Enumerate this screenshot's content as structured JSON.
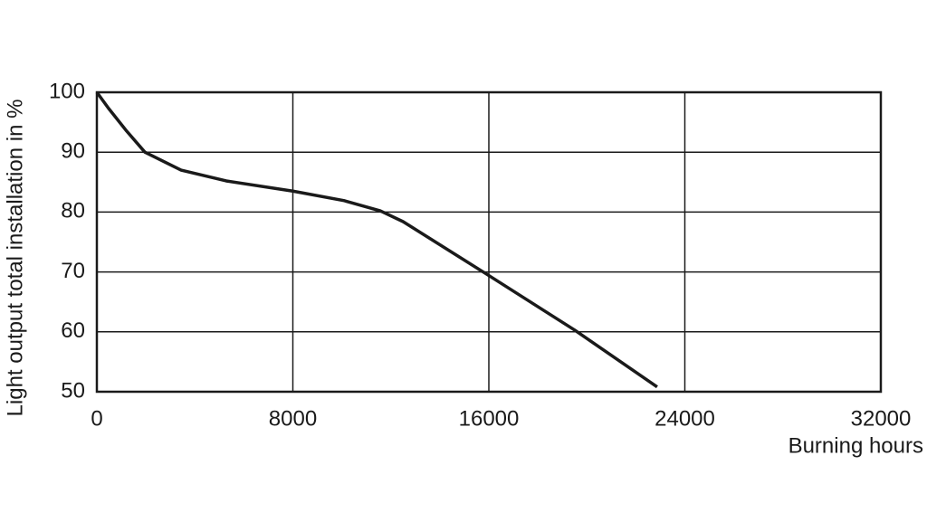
{
  "chart_data": {
    "type": "line",
    "x_label": "Burning hours",
    "y_label": "Light output total installation in %",
    "x": [
      0,
      480,
      1220,
      1960,
      3440,
      5280,
      8000,
      10100,
      11570,
      12500,
      16000,
      19500,
      22870
    ],
    "series": [
      {
        "name": "Light output",
        "color": "#1a1a1a",
        "values": [
          100,
          97.3,
          93.5,
          90,
          87,
          85.2,
          83.5,
          81.9,
          80.2,
          78.4,
          69.4,
          60.3,
          50.8
        ]
      }
    ],
    "xlim": [
      0,
      32000
    ],
    "xticks": [
      0,
      8000,
      16000,
      24000,
      32000
    ],
    "ylim": [
      50,
      100
    ],
    "yticks": [
      50,
      60,
      70,
      80,
      90,
      100
    ],
    "grid": true
  }
}
